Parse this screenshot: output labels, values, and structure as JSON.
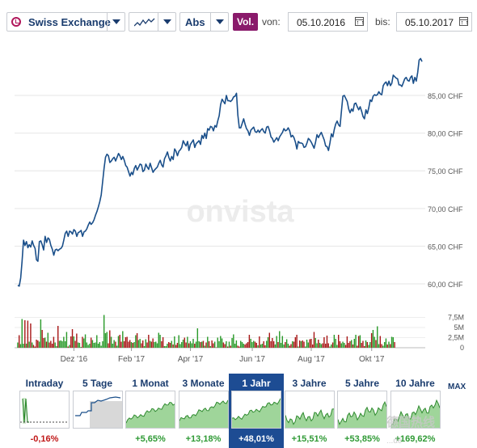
{
  "toolbar": {
    "exchange_label": "Swiss Exchange",
    "exchange_icon": "clock-icon",
    "chart_type_icon": "line-chart-icon",
    "scale_label": "Abs",
    "volume_label": "Vol.",
    "from_label": "von:",
    "from_date": "05.10.2016",
    "to_label": "bis:",
    "to_date": "05.10.2017",
    "calendar_icon": "calendar-icon",
    "volume_color": "#8a1a6b"
  },
  "watermark": "onvista",
  "watermark2": {
    "chars": "德国热线",
    "url": "...de"
  },
  "chart_data": {
    "type": "line",
    "currency": "CHF",
    "y_ticks": [
      "85,00 CHF",
      "80,00 CHF",
      "75,00 CHF",
      "70,00 CHF",
      "65,00 CHF",
      "60,00 CHF"
    ],
    "y_tick_values": [
      85,
      80,
      75,
      70,
      65,
      60
    ],
    "ylim": [
      58.5,
      90.8
    ],
    "x_labels": [
      "Dez '16",
      "Feb '17",
      "Apr '17",
      "Jun '17",
      "Aug '17",
      "Okt '17"
    ],
    "x_label_index": [
      39,
      79,
      120,
      163,
      204,
      246
    ],
    "line_color": "#1a4f8a",
    "prices": [
      59.8,
      59.7,
      60.8,
      63.0,
      65.8,
      65.1,
      65.6,
      64.8,
      65.2,
      64.9,
      65.7,
      65.1,
      64.7,
      63.2,
      63.0,
      65.6,
      65.7,
      65.2,
      64.5,
      66.3,
      65.5,
      66.1,
      65.9,
      65.1,
      64.6,
      63.8,
      64.5,
      64.6,
      64.4,
      64.6,
      64.7,
      65.0,
      65.8,
      66.7,
      67.0,
      66.3,
      67.0,
      66.9,
      66.6,
      67.2,
      67.0,
      66.3,
      66.8,
      66.9,
      67.1,
      66.3,
      66.9,
      67.0,
      67.3,
      67.8,
      68.2,
      67.9,
      68.1,
      68.5,
      69.1,
      69.6,
      70.2,
      70.9,
      71.8,
      73.6,
      75.4,
      76.8,
      77.2,
      77.0,
      76.1,
      76.3,
      76.6,
      76.8,
      76.3,
      76.8,
      77.3,
      77.0,
      76.5,
      76.9,
      76.4,
      75.7,
      75.5,
      74.9,
      74.3,
      74.8,
      74.5,
      75.3,
      75.7,
      75.1,
      75.5,
      75.9,
      75.8,
      74.9,
      75.1,
      75.9,
      75.5,
      75.2,
      76.0,
      75.4,
      74.8,
      75.1,
      75.3,
      75.5,
      76.0,
      76.4,
      75.8,
      75.5,
      76.6,
      77.0,
      77.5,
      76.8,
      76.3,
      76.9,
      76.5,
      77.9,
      77.6,
      77.0,
      77.6,
      77.8,
      78.1,
      79.0,
      78.6,
      78.3,
      78.9,
      77.7,
      78.5,
      78.8,
      79.1,
      78.1,
      78.6,
      78.8,
      79.0,
      78.5,
      79.7,
      79.3,
      80.0,
      79.3,
      80.6,
      80.4,
      80.9,
      80.8,
      80.3,
      81.0,
      80.8,
      81.6,
      82.3,
      83.8,
      84.5,
      84.2,
      83.9,
      85.0,
      84.3,
      84.3,
      84.2,
      84.4,
      84.8,
      84.9,
      85.3,
      82.4,
      80.7,
      80.7,
      81.3,
      81.9,
      81.2,
      80.6,
      80.3,
      79.7,
      80.4,
      80.6,
      80.8,
      80.2,
      80.1,
      80.4,
      80.1,
      80.4,
      80.6,
      80.2,
      80.0,
      80.8,
      80.9,
      80.3,
      79.5,
      79.3,
      78.8,
      79.1,
      79.4,
      79.0,
      79.5,
      79.8,
      80.1,
      80.6,
      80.3,
      80.4,
      80.7,
      80.3,
      79.5,
      79.7,
      79.4,
      78.8,
      77.9,
      78.9,
      78.7,
      78.7,
      78.6,
      78.1,
      78.2,
      78.7,
      79.3,
      79.1,
      78.8,
      78.4,
      78.0,
      78.8,
      79.8,
      79.4,
      79.8,
      80.1,
      79.6,
      79.1,
      78.3,
      78.2,
      77.7,
      78.7,
      79.9,
      79.5,
      80.5,
      81.2,
      81.6,
      81.1,
      80.9,
      83.0,
      84.9,
      85.0,
      84.6,
      84.2,
      83.2,
      82.7,
      83.2,
      82.9,
      83.9,
      84.0,
      83.5,
      83.1,
      83.5,
      82.9,
      82.2,
      81.9,
      83.1,
      82.6,
      83.4,
      84.4,
      84.2,
      84.9,
      85.1,
      85.0,
      85.1,
      85.5,
      85.2,
      85.1,
      86.3,
      86.6,
      86.8,
      86.3,
      86.9,
      86.3,
      86.6,
      87.7,
      87.5,
      87.3,
      87.2,
      86.4,
      86.4,
      86.2,
      86.7,
      87.2,
      87.4,
      87.0,
      86.9,
      87.4,
      87.6,
      86.6,
      87.4,
      86.9,
      88.1,
      89.7,
      89.9,
      89.5
    ],
    "volume_ticks": [
      "7,5M",
      "5M",
      "2,5M",
      "0"
    ],
    "volume_tick_values": [
      7.5,
      5,
      2.5,
      0
    ],
    "volume_ylim": [
      0,
      9.8
    ],
    "volume_up_color": "#2a9a2a",
    "volume_down_color": "#a81818",
    "volumes": [
      1.3,
      3.1,
      0.9,
      7.1,
      1.0,
      6.8,
      1.0,
      6.7,
      1.5,
      6.0,
      1.3,
      0.7,
      0.3,
      2.0,
      1.8,
      1.5,
      7.0,
      4.4,
      2.4,
      2.5,
      1.5,
      3.7,
      1.3,
      1.7,
      1.0,
      2.7,
      1.3,
      0.4,
      5.4,
      1.7,
      1.8,
      1.6,
      2.7,
      1.6,
      3.9,
      0.3,
      0.7,
      2.8,
      4.6,
      2.8,
      1.7,
      3.5,
      1.3,
      1.2,
      0.2,
      2.7,
      2.3,
      3.3,
      1.3,
      0.7,
      1.0,
      2.5,
      1.9,
      1.2,
      1.3,
      3.1,
      1.0,
      1.4,
      0.5,
      1.6,
      8.1,
      3.6,
      3.9,
      1.1,
      4.3,
      2.7,
      1.0,
      1.9,
      1.5,
      0.5,
      2.9,
      3.2,
      1.5,
      4.1,
      1.6,
      2.6,
      2.7,
      1.5,
      1.9,
      1.4,
      1.2,
      1.4,
      3.1,
      3.6,
      1.9,
      2.2,
      1.1,
      1.8,
      0.4,
      2.1,
      1.3,
      3.2,
      1.7,
      1.5,
      2.3,
      1.4,
      1.5,
      1.1,
      3.7,
      3.2,
      1.6,
      2.6,
      0.4,
      0.4,
      1.0,
      1.4,
      1.2,
      1.7,
      0.8,
      2.8,
      0.7,
      1.2,
      3.1,
      0.9,
      1.4,
      2.0,
      2.5,
      1.3,
      2.7,
      1.1,
      1.6,
      1.1,
      2.2,
      1.0,
      1.5,
      4.8,
      1.6,
      1.4,
      1.5,
      1.7,
      0.5,
      1.3,
      2.7,
      1.6,
      0.4,
      1.8,
      1.1,
      1.5,
      0.1,
      2.5,
      1.6,
      2.9,
      2.3,
      1.3,
      0.9,
      1.6,
      0.3,
      1.5,
      0.5,
      2.4,
      3.3,
      1.0,
      1.8,
      0.5,
      0.3,
      1.7,
      1.4,
      1.0,
      0.8,
      1.1,
      1.4,
      3.2,
      2.2,
      1.4,
      1.7,
      1.5,
      1.2,
      0.6,
      2.8,
      0.8,
      1.0,
      1.6,
      0.6,
      1.7,
      2.6,
      3.7,
      1.6,
      2.4,
      1.6,
      0.8,
      2.9,
      1.4,
      4.1,
      1.2,
      2.9,
      0.8,
      1.4,
      2.1,
      1.0,
      0.5,
      0.9,
      1.6,
      1.5,
      2.6,
      3.2,
      0.3,
      1.8,
      1.6,
      1.8,
      1.5,
      0.3,
      2.0,
      1.3,
      2.1,
      2.2,
      0.8,
      3.9,
      2.4,
      1.1,
      2.0,
      1.2,
      0.9,
      1.1,
      2.6,
      1.0,
      3.0,
      1.1,
      0.3,
      0.8,
      1.3,
      3.2,
      2.2,
      0.7,
      3.2,
      1.6,
      1.1,
      1.5,
      1.2,
      0.7,
      2.8,
      1.2,
      1.6,
      1.9,
      0.8,
      2.2,
      3.2,
      0.5,
      2.9,
      3.1,
      1.2,
      1.7,
      0.4,
      1.8,
      1.4,
      0.7,
      1.4,
      3.6,
      4.4,
      2.7,
      1.9,
      5.3,
      0.9,
      2.9,
      0.9,
      0.5,
      1.4,
      2.3,
      0.8,
      1.5,
      0.9,
      2.7,
      2.6,
      1.4
    ]
  },
  "periods": [
    {
      "label": "Intraday",
      "value": "-0,16%",
      "sign": "neg",
      "active": false
    },
    {
      "label": "5 Tage",
      "value": "",
      "sign": "pos",
      "active": false
    },
    {
      "label": "1 Monat",
      "value": "+5,65%",
      "sign": "pos",
      "active": false
    },
    {
      "label": "3 Monate",
      "value": "+13,18%",
      "sign": "pos",
      "active": false
    },
    {
      "label": "1 Jahr",
      "value": "+48,01%",
      "sign": "pos",
      "active": true
    },
    {
      "label": "3 Jahre",
      "value": "+15,51%",
      "sign": "pos",
      "active": false
    },
    {
      "label": "5 Jahre",
      "value": "+53,85%",
      "sign": "pos",
      "active": false
    },
    {
      "label": "10 Jahre",
      "value": "+169,62%",
      "sign": "pos",
      "active": false
    }
  ],
  "max_label": "MAX",
  "thumb_colors": {
    "fill": "#9fd59a",
    "line": "#2f8a2f",
    "gray": "#d8d8d8"
  }
}
